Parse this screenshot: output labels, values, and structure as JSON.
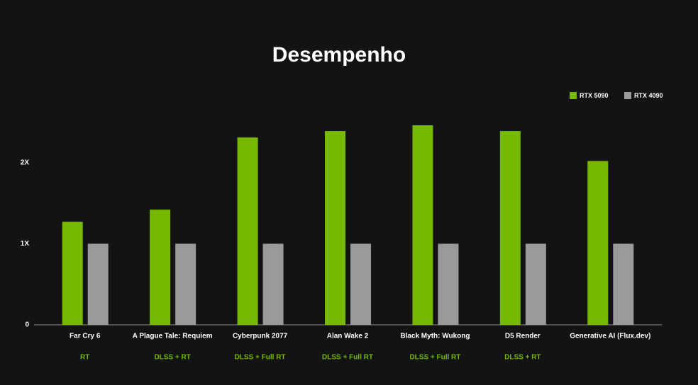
{
  "chart_data": {
    "type": "bar",
    "title": "Desempenho",
    "categories": [
      "Far Cry 6",
      "A Plague Tale: Requiem",
      "Cyberpunk 2077",
      "Alan Wake 2",
      "Black Myth: Wukong",
      "D5 Render",
      "Generative AI (Flux.dev)"
    ],
    "subcategories": [
      "RT",
      "DLSS + RT",
      "DLSS + Full RT",
      "DLSS + Full RT",
      "DLSS + Full RT",
      "DLSS + RT",
      null
    ],
    "series": [
      {
        "name": "RTX 5090",
        "color": "#76b900",
        "values": [
          1.27,
          1.42,
          2.31,
          2.39,
          2.46,
          2.39,
          2.02
        ]
      },
      {
        "name": "RTX 4090",
        "color": "#9a9a9a",
        "values": [
          1,
          1,
          1,
          1,
          1,
          1,
          1
        ]
      }
    ],
    "ylim": [
      0,
      2.6
    ],
    "yticks": [
      0,
      {
        "value": 1,
        "label": "1X"
      },
      {
        "value": 2,
        "label": "2X"
      }
    ],
    "grid": false,
    "legend": "top-right"
  }
}
